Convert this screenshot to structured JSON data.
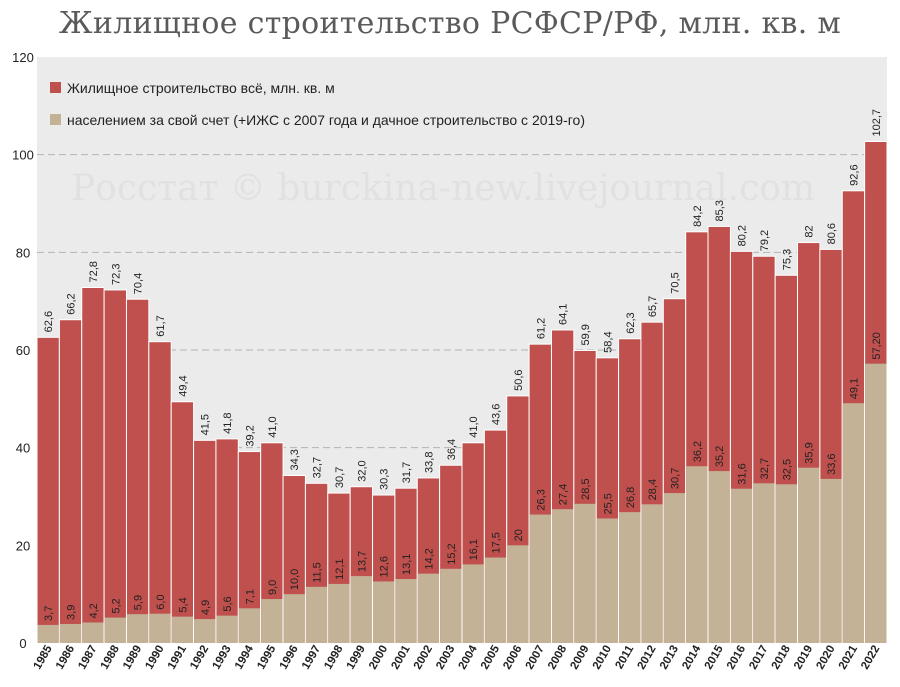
{
  "chart_data": {
    "type": "bar",
    "title": "Жилищное строительство РСФСР/РФ, млн. кв. м",
    "watermark": "Росстат © burckina-new.livejournal.com",
    "ylim": [
      0,
      120
    ],
    "yticks": [
      "0",
      "20",
      "40",
      "60",
      "80",
      "100",
      "120"
    ],
    "grid": true,
    "legend_position": "top-left",
    "colors": {
      "total": "#c0504d",
      "self": "#c4b296",
      "plot_bg": "#ebebeb",
      "grid": "#b3b3b3"
    },
    "categories": [
      "1985",
      "1986",
      "1987",
      "1988",
      "1989",
      "1990",
      "1991",
      "1992",
      "1993",
      "1994",
      "1995",
      "1996",
      "1997",
      "1998",
      "1999",
      "2000",
      "2001",
      "2002",
      "2003",
      "2004",
      "2005",
      "2006",
      "2007",
      "2008",
      "2009",
      "2010",
      "2011",
      "2012",
      "2013",
      "2014",
      "2015",
      "2016",
      "2017",
      "2018",
      "2019",
      "2020",
      "2021",
      "2022"
    ],
    "series": [
      {
        "name": "Жилищное строительство всё, млн. кв. м",
        "values": [
          62.6,
          66.2,
          72.8,
          72.3,
          70.4,
          61.7,
          49.4,
          41.5,
          41.8,
          39.2,
          41.0,
          34.3,
          32.7,
          30.7,
          32.0,
          30.3,
          31.7,
          33.8,
          36.4,
          41.0,
          43.6,
          50.6,
          61.2,
          64.1,
          59.9,
          58.4,
          62.3,
          65.7,
          70.5,
          84.2,
          85.3,
          80.2,
          79.2,
          75.3,
          82,
          80.6,
          92.6,
          102.7
        ],
        "labels": [
          "62,6",
          "66,2",
          "72,8",
          "72,3",
          "70,4",
          "61,7",
          "49,4",
          "41,5",
          "41,8",
          "39,2",
          "41,0",
          "34,3",
          "32,7",
          "30,7",
          "32,0",
          "30,3",
          "31,7",
          "33,8",
          "36,4",
          "41,0",
          "43,6",
          "50,6",
          "61,2",
          "64,1",
          "59,9",
          "58,4",
          "62,3",
          "65,7",
          "70,5",
          "84,2",
          "85,3",
          "80,2",
          "79,2",
          "75,3",
          "82",
          "80,6",
          "92,6",
          "102,7"
        ]
      },
      {
        "name": "населением за свой счет (+ИЖС с 2007 года и дачное строительство с 2019-го)",
        "values": [
          3.7,
          3.9,
          4.2,
          5.2,
          5.9,
          6.0,
          5.4,
          4.9,
          5.6,
          7.1,
          9.0,
          10.0,
          11.5,
          12.1,
          13.7,
          12.6,
          13.1,
          14.2,
          15.2,
          16.1,
          17.5,
          20,
          26.3,
          27.4,
          28.5,
          25.5,
          26.8,
          28.4,
          30.7,
          36.2,
          35.2,
          31.6,
          32.7,
          32.5,
          35.9,
          33.6,
          49.1,
          57.2
        ],
        "labels": [
          "3,7",
          "3,9",
          "4,2",
          "5,2",
          "5,9",
          "6,0",
          "5,4",
          "4,9",
          "5,6",
          "7,1",
          "9,0",
          "10,0",
          "11,5",
          "12,1",
          "13,7",
          "12,6",
          "13,1",
          "14,2",
          "15,2",
          "16,1",
          "17,5",
          "20",
          "26,3",
          "27,4",
          "28,5",
          "25,5",
          "26,8",
          "28,4",
          "30,7",
          "36,2",
          "35,2",
          "31,6",
          "32,7",
          "32,5",
          "35,9",
          "33,6",
          "49,1",
          "57,20"
        ]
      }
    ]
  }
}
